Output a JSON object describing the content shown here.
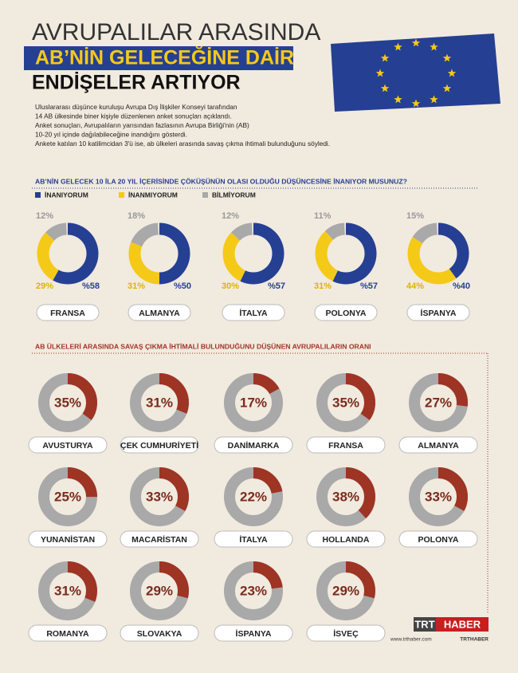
{
  "header": {
    "line1": "AVRUPALILAR ARASINDA",
    "line2": "AB’NİN GELECEĞİNE DAİR",
    "line3": "ENDİŞELER ARTIYOR",
    "intro": [
      "Uluslararası düşünce kuruluşu Avrupa Dış İlişkiler Konseyi tarafından",
      "14 AB ülkesinde biner kişiyle düzenlenen anket sonuçları açıklandı.",
      "Anket sonuçları, Avrupalıların yarısından fazlasının Avrupa Birliği'nin (AB)",
      "10-20 yıl içinde dağılabileceğine inandığını gösterdi.",
      "Anketе katılan 10 katilimcidan 3'ü ise, ab ülkeleri arasında savaş çıkma ihtimali bulunduğunu söyledi."
    ]
  },
  "chart_data": [
    {
      "type": "donut",
      "title": "AB’NİN GELECEK 10 İLA 20 YIL İÇERİSİNDE ÇÖKÜŞÜNÜN OLASI OLDUĞU DÜŞÜNCESİNE İNANIYOR MUSUNUZ?",
      "categories": [
        "FRANSA",
        "ALMANYA",
        "İTALYA",
        "POLONYA",
        "İSPANYA"
      ],
      "series": [
        {
          "name": "İNANIYORUM",
          "color": "#253f93",
          "values": [
            58,
            50,
            57,
            57,
            40
          ],
          "value_labels": [
            "%58",
            "%50",
            "%57",
            "%57",
            "%40"
          ]
        },
        {
          "name": "İNANMIYORUM",
          "color": "#f5c918",
          "values": [
            29,
            31,
            30,
            31,
            44
          ],
          "value_labels": [
            "29%",
            "31%",
            "30%",
            "31%",
            "44%"
          ]
        },
        {
          "name": "BİLMİYORUM",
          "color": "#a9a9a9",
          "values": [
            12,
            18,
            12,
            11,
            15
          ],
          "value_labels": [
            "12%",
            "18%",
            "12%",
            "11%",
            "15%"
          ]
        }
      ]
    },
    {
      "type": "donut",
      "title": "AB ÜLKELERİ ARASINDA SAVAŞ ÇIKMA İHTİMALİ BULUNDUĞUNU DÜŞÜNEN AVRUPALILARIN ORANI",
      "categories": [
        "AVUSTURYA",
        "ÇEK CUMHURİYETİ",
        "DANİMARKA",
        "FRANSA",
        "ALMANYA",
        "YUNANİSTAN",
        "MACARİSTAN",
        "İTALYA",
        "HOLLANDA",
        "POLONYA",
        "ROMANYA",
        "SLOVAKYA",
        "İSPANYA",
        "İSVEÇ"
      ],
      "values": [
        35,
        31,
        17,
        35,
        27,
        25,
        33,
        22,
        38,
        33,
        31,
        29,
        23,
        29
      ],
      "value_labels": [
        "35%",
        "31%",
        "17%",
        "35%",
        "27%",
        "25%",
        "33%",
        "22%",
        "38%",
        "33%",
        "31%",
        "29%",
        "23%",
        "29%"
      ],
      "color": "#9e3424"
    }
  ],
  "footer": {
    "brand1": "TRT",
    "brand2": "HABER",
    "url": "www.trthaber.com",
    "handle": "TRTHABER"
  }
}
